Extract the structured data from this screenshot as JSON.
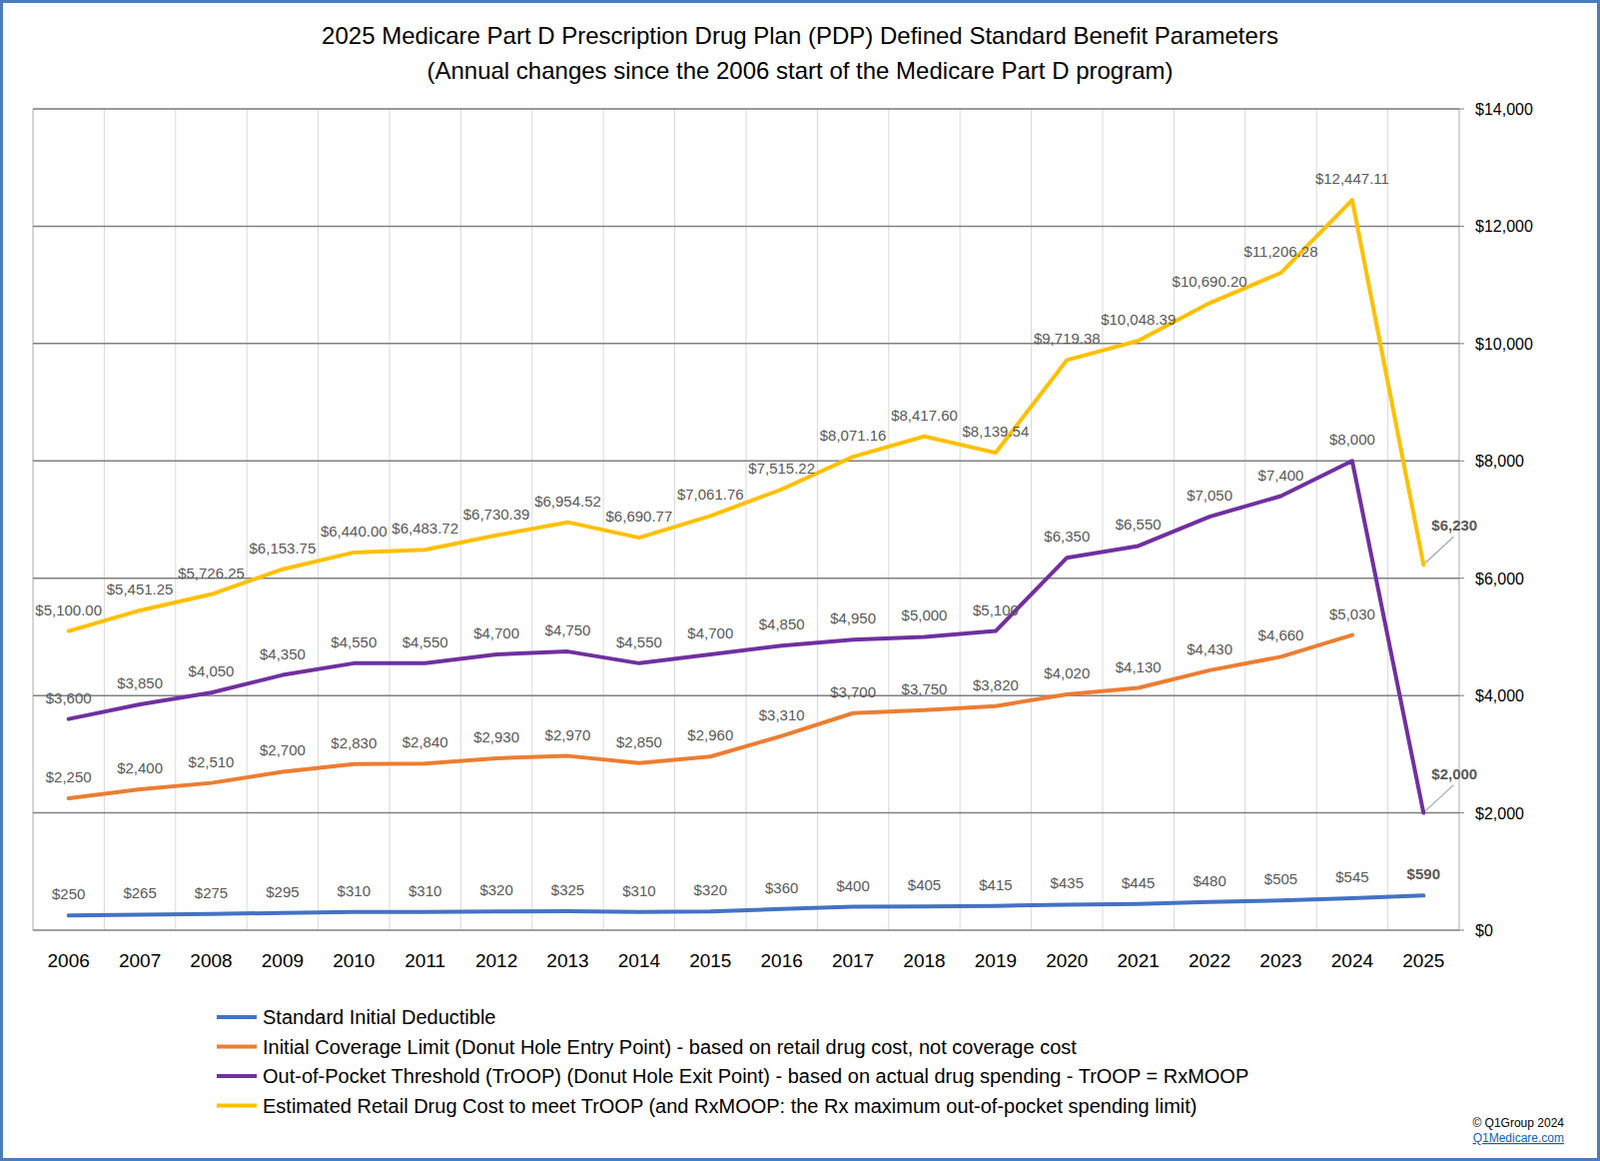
{
  "chart_data": {
    "type": "line",
    "title": "2025 Medicare Part D Prescription Drug Plan (PDP) Defined Standard Benefit Parameters",
    "subtitle": "(Annual changes since the 2006 start of the Medicare Part D program)",
    "categories": [
      "2006",
      "2007",
      "2008",
      "2009",
      "2010",
      "2011",
      "2012",
      "2013",
      "2014",
      "2015",
      "2016",
      "2017",
      "2018",
      "2019",
      "2020",
      "2021",
      "2022",
      "2023",
      "2024",
      "2025"
    ],
    "ylim": [
      0,
      14000
    ],
    "yticks": [
      {
        "value": 0,
        "label": "$0"
      },
      {
        "value": 2000,
        "label": "$2,000"
      },
      {
        "value": 4000,
        "label": "$4,000"
      },
      {
        "value": 6000,
        "label": "$6,000"
      },
      {
        "value": 8000,
        "label": "$8,000"
      },
      {
        "value": 10000,
        "label": "$10,000"
      },
      {
        "value": 12000,
        "label": "$12,000"
      },
      {
        "value": 14000,
        "label": "$14,000"
      }
    ],
    "grid": true,
    "legend": "bottom",
    "data_labels": true,
    "series": [
      {
        "name": "Standard Initial Deductible",
        "color": "#4472c4",
        "values": [
          250,
          265,
          275,
          295,
          310,
          310,
          320,
          325,
          310,
          320,
          360,
          400,
          405,
          415,
          435,
          445,
          480,
          505,
          545,
          590
        ],
        "value_labels": [
          "$250",
          "$265",
          "$275",
          "$295",
          "$310",
          "$310",
          "$320",
          "$325",
          "$310",
          "$320",
          "$360",
          "$400",
          "$405",
          "$415",
          "$435",
          "$445",
          "$480",
          "$505",
          "$545",
          "$590"
        ]
      },
      {
        "name": "Initial Coverage Limit (Donut Hole Entry Point) - based on retail drug cost, not coverage cost",
        "color": "#ed7d31",
        "values": [
          2250,
          2400,
          2510,
          2700,
          2830,
          2840,
          2930,
          2970,
          2850,
          2960,
          3310,
          3700,
          3750,
          3820,
          4020,
          4130,
          4430,
          4660,
          5030,
          null
        ],
        "value_labels": [
          "$2,250",
          "$2,400",
          "$2,510",
          "$2,700",
          "$2,830",
          "$2,840",
          "$2,930",
          "$2,970",
          "$2,850",
          "$2,960",
          "$3,310",
          "$3,700",
          "$3,750",
          "$3,820",
          "$4,020",
          "$4,130",
          "$4,430",
          "$4,660",
          "$5,030",
          null
        ]
      },
      {
        "name": "Out-of-Pocket Threshold (TrOOP) (Donut Hole Exit Point) - based on actual drug spending - TrOOP = RxMOOP",
        "color": "#7030a0",
        "values": [
          3600,
          3850,
          4050,
          4350,
          4550,
          4550,
          4700,
          4750,
          4550,
          4700,
          4850,
          4950,
          5000,
          5100,
          6350,
          6550,
          7050,
          7400,
          8000,
          2000
        ],
        "value_labels": [
          "$3,600",
          "$3,850",
          "$4,050",
          "$4,350",
          "$4,550",
          "$4,550",
          "$4,700",
          "$4,750",
          "$4,550",
          "$4,700",
          "$4,850",
          "$4,950",
          "$5,000",
          "$5,100",
          "$6,350",
          "$6,550",
          "$7,050",
          "$7,400",
          "$8,000",
          "$2,000"
        ]
      },
      {
        "name": "Estimated Retail Drug Cost to meet TrOOP (and  RxMOOP: the Rx maximum out-of-pocket spending limit)",
        "color": "#ffc000",
        "values": [
          5100.0,
          5451.25,
          5726.25,
          6153.75,
          6440.0,
          6483.72,
          6730.39,
          6954.52,
          6690.77,
          7061.76,
          7515.22,
          8071.16,
          8417.6,
          8139.54,
          9719.38,
          10048.39,
          10690.2,
          11206.28,
          12447.11,
          6230
        ],
        "value_labels": [
          "$5,100.00",
          "$5,451.25",
          "$5,726.25",
          "$6,153.75",
          "$6,440.00",
          "$6,483.72",
          "$6,730.39",
          "$6,954.52",
          "$6,690.77",
          "$7,061.76",
          "$7,515.22",
          "$8,071.16",
          "$8,417.60",
          "$8,139.54",
          "$9,719.38",
          "$10,048.39",
          "$10,690.20",
          "$11,206.28",
          "$12,447.11",
          "$6,230"
        ]
      }
    ],
    "annotations": [
      "© Q1Group 2024",
      "Q1Medicare.com"
    ]
  }
}
